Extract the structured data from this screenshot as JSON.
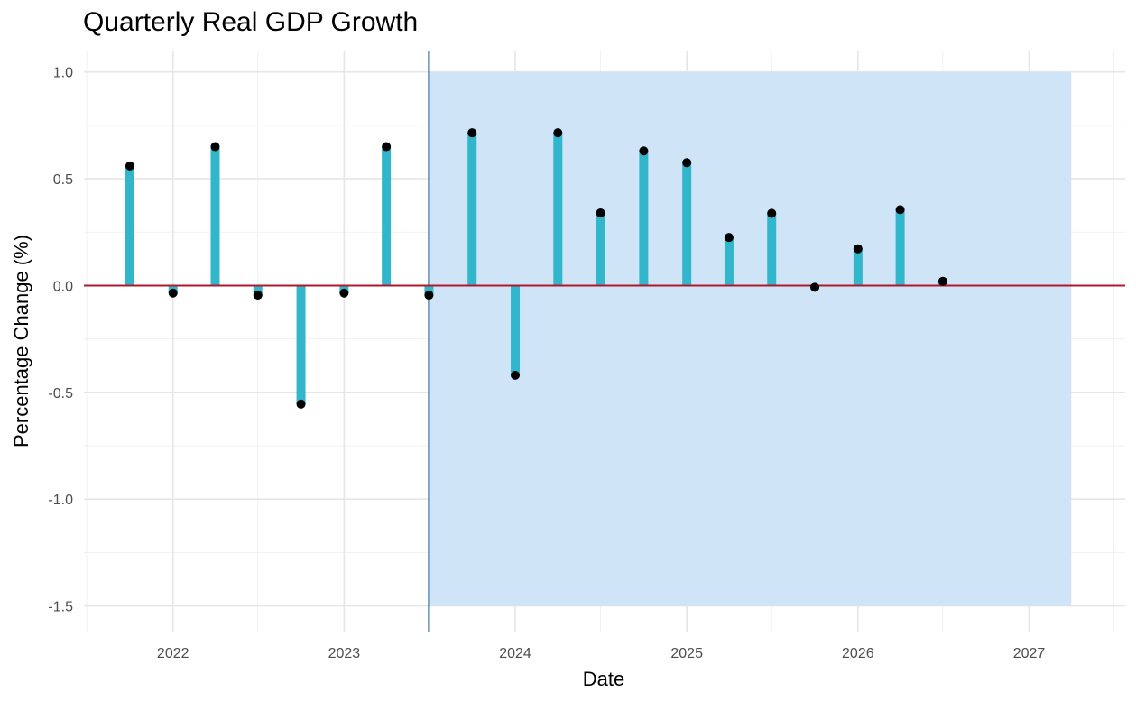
{
  "chart_data": {
    "type": "bar",
    "title": "Quarterly Real GDP Growth",
    "xlabel": "Date",
    "ylabel": "Percentage Change (%)",
    "x_ticks": [
      "2022",
      "2023",
      "2024",
      "2025",
      "2026",
      "2027"
    ],
    "y_ticks": [
      "1.0",
      "0.5",
      "0.0",
      "-0.5",
      "-1.0",
      "-1.5"
    ],
    "xlim": [
      "2021-06-25",
      "2027-07-25"
    ],
    "ylim": [
      -1.62,
      1.1
    ],
    "grid": true,
    "reference_line_y": 0.0,
    "forecast_start": "2023-07-01",
    "forecast_region": {
      "x": [
        "2023-07-01",
        "2027-04-01"
      ],
      "y": [
        -1.5,
        1.0
      ]
    },
    "series": [
      {
        "dates": [
          "2021-10-01",
          "2022-01-01",
          "2022-04-01",
          "2022-07-01",
          "2022-10-01",
          "2023-01-01",
          "2023-04-01",
          "2023-07-01",
          "2023-10-01",
          "2024-01-01",
          "2024-04-01",
          "2024-07-01",
          "2024-10-01",
          "2025-01-01",
          "2025-04-01",
          "2025-07-01",
          "2025-10-01",
          "2026-01-01",
          "2026-04-01",
          "2026-07-01"
        ],
        "values": [
          0.56,
          -0.035,
          0.65,
          -0.045,
          -0.555,
          -0.035,
          0.65,
          -0.045,
          0.715,
          -0.42,
          0.715,
          0.34,
          0.63,
          0.575,
          0.225,
          0.338,
          -0.008,
          0.172,
          0.355,
          0.02
        ]
      }
    ],
    "colors": {
      "bar": "#32b6cc",
      "point": "#000000",
      "zero_line": "#b2182b",
      "forecast_line": "#1f5f99",
      "forecast_fill": "#cfe4f7",
      "grid_major": "#e6e6e6",
      "grid_minor": "#f1f1f1"
    }
  }
}
